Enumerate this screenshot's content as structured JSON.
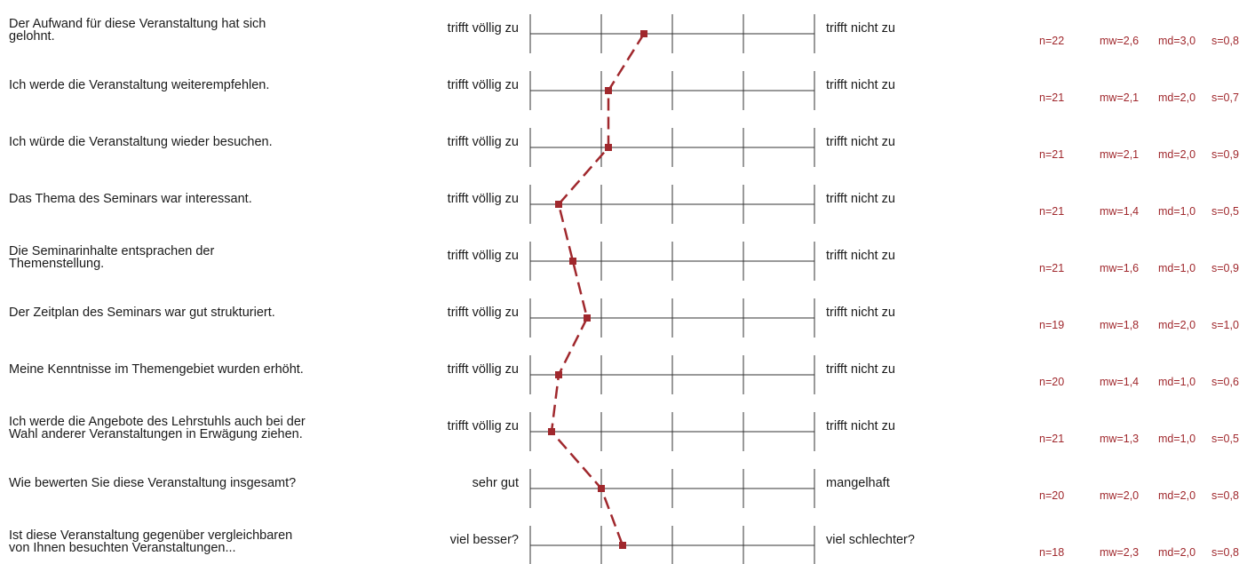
{
  "chart_data": {
    "type": "line",
    "scale": {
      "min": 1,
      "max": 5,
      "steps": 5
    },
    "line_color": "#a0282d",
    "line_style": "dashed",
    "marker": "square",
    "items": [
      {
        "question": [
          "Der Aufwand für diese Veranstaltung hat sich",
          "gelohnt."
        ],
        "left_label": "trifft völlig zu",
        "right_label": "trifft nicht zu",
        "mean": 2.6,
        "n": "n=22",
        "mw": "mw=2,6",
        "md": "md=3,0",
        "s": "s=0,8"
      },
      {
        "question": [
          "Ich werde die Veranstaltung weiterempfehlen."
        ],
        "left_label": "trifft völlig zu",
        "right_label": "trifft nicht zu",
        "mean": 2.1,
        "n": "n=21",
        "mw": "mw=2,1",
        "md": "md=2,0",
        "s": "s=0,7"
      },
      {
        "question": [
          "Ich würde die Veranstaltung wieder besuchen."
        ],
        "left_label": "trifft völlig zu",
        "right_label": "trifft nicht zu",
        "mean": 2.1,
        "n": "n=21",
        "mw": "mw=2,1",
        "md": "md=2,0",
        "s": "s=0,9"
      },
      {
        "question": [
          "Das Thema des Seminars war interessant."
        ],
        "left_label": "trifft völlig zu",
        "right_label": "trifft nicht zu",
        "mean": 1.4,
        "n": "n=21",
        "mw": "mw=1,4",
        "md": "md=1,0",
        "s": "s=0,5"
      },
      {
        "question": [
          "Die Seminarinhalte entsprachen der",
          "Themenstellung."
        ],
        "left_label": "trifft völlig zu",
        "right_label": "trifft nicht zu",
        "mean": 1.6,
        "n": "n=21",
        "mw": "mw=1,6",
        "md": "md=1,0",
        "s": "s=0,9"
      },
      {
        "question": [
          "Der Zeitplan des Seminars war gut strukturiert."
        ],
        "left_label": "trifft völlig zu",
        "right_label": "trifft nicht zu",
        "mean": 1.8,
        "n": "n=19",
        "mw": "mw=1,8",
        "md": "md=2,0",
        "s": "s=1,0"
      },
      {
        "question": [
          "Meine Kenntnisse im Themengebiet wurden erhöht."
        ],
        "left_label": "trifft völlig zu",
        "right_label": "trifft nicht zu",
        "mean": 1.4,
        "n": "n=20",
        "mw": "mw=1,4",
        "md": "md=1,0",
        "s": "s=0,6"
      },
      {
        "question": [
          "Ich werde die Angebote des Lehrstuhls auch bei der",
          "Wahl anderer Veranstaltungen in Erwägung ziehen."
        ],
        "left_label": "trifft völlig zu",
        "right_label": "trifft nicht zu",
        "mean": 1.3,
        "n": "n=21",
        "mw": "mw=1,3",
        "md": "md=1,0",
        "s": "s=0,5"
      },
      {
        "question": [
          "Wie bewerten Sie diese Veranstaltung insgesamt?"
        ],
        "left_label": "sehr gut",
        "right_label": "mangelhaft",
        "mean": 2.0,
        "n": "n=20",
        "mw": "mw=2,0",
        "md": "md=2,0",
        "s": "s=0,8"
      },
      {
        "question": [
          "Ist diese Veranstaltung gegenüber vergleichbaren",
          "von Ihnen besuchten Veranstaltungen..."
        ],
        "left_label": "viel besser?",
        "right_label": "viel schlechter?",
        "mean": 2.3,
        "n": "n=18",
        "mw": "mw=2,3",
        "md": "md=2,0",
        "s": "s=0,8"
      }
    ]
  }
}
